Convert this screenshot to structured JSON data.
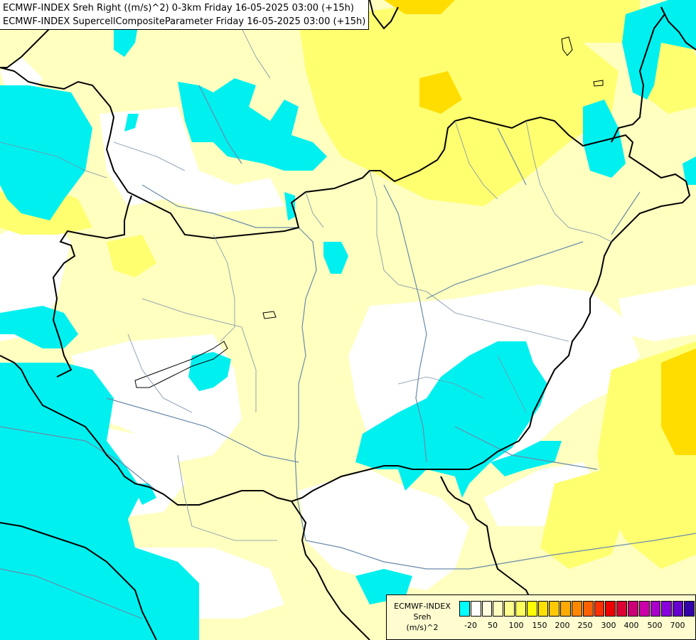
{
  "title": {
    "line1": "ECMWF-INDEX Sreh Right ((m/s)^2) 0-3km Friday 16-05-2025 03:00 (+15h)",
    "line2": "ECMWF-INDEX SupercellCompositeParameter Friday 16-05-2025 03:00 (+15h)"
  },
  "colors": {
    "background": "#ffffff",
    "cyan": "#00f0f0",
    "light_yellow": "#ffffc0",
    "pale_yellow": "#ffffa0",
    "yellow": "#ffff60",
    "strong_yellow": "#ffee00",
    "gold": "#ffcc00",
    "border": "#000000",
    "river": "#6a8aa8"
  },
  "legend": {
    "line1": "ECMWF-INDEX",
    "line2": "Sreh",
    "line3": "(m/s)^2",
    "swatch_colors": [
      "#00ffff",
      "#ffffff",
      "#ffffe0",
      "#ffffc0",
      "#ffff90",
      "#ffff60",
      "#ffff00",
      "#ffe000",
      "#ffc800",
      "#ffaa00",
      "#ff8800",
      "#ff6000",
      "#ff3000",
      "#ee0000",
      "#dd0033",
      "#cc0077",
      "#cc00aa",
      "#aa00cc",
      "#8800dd",
      "#6600cc",
      "#3300aa",
      "#000088"
    ],
    "tick_labels": [
      "-20",
      "50",
      "100",
      "150",
      "200",
      "250",
      "300",
      "400",
      "500",
      "700"
    ]
  }
}
